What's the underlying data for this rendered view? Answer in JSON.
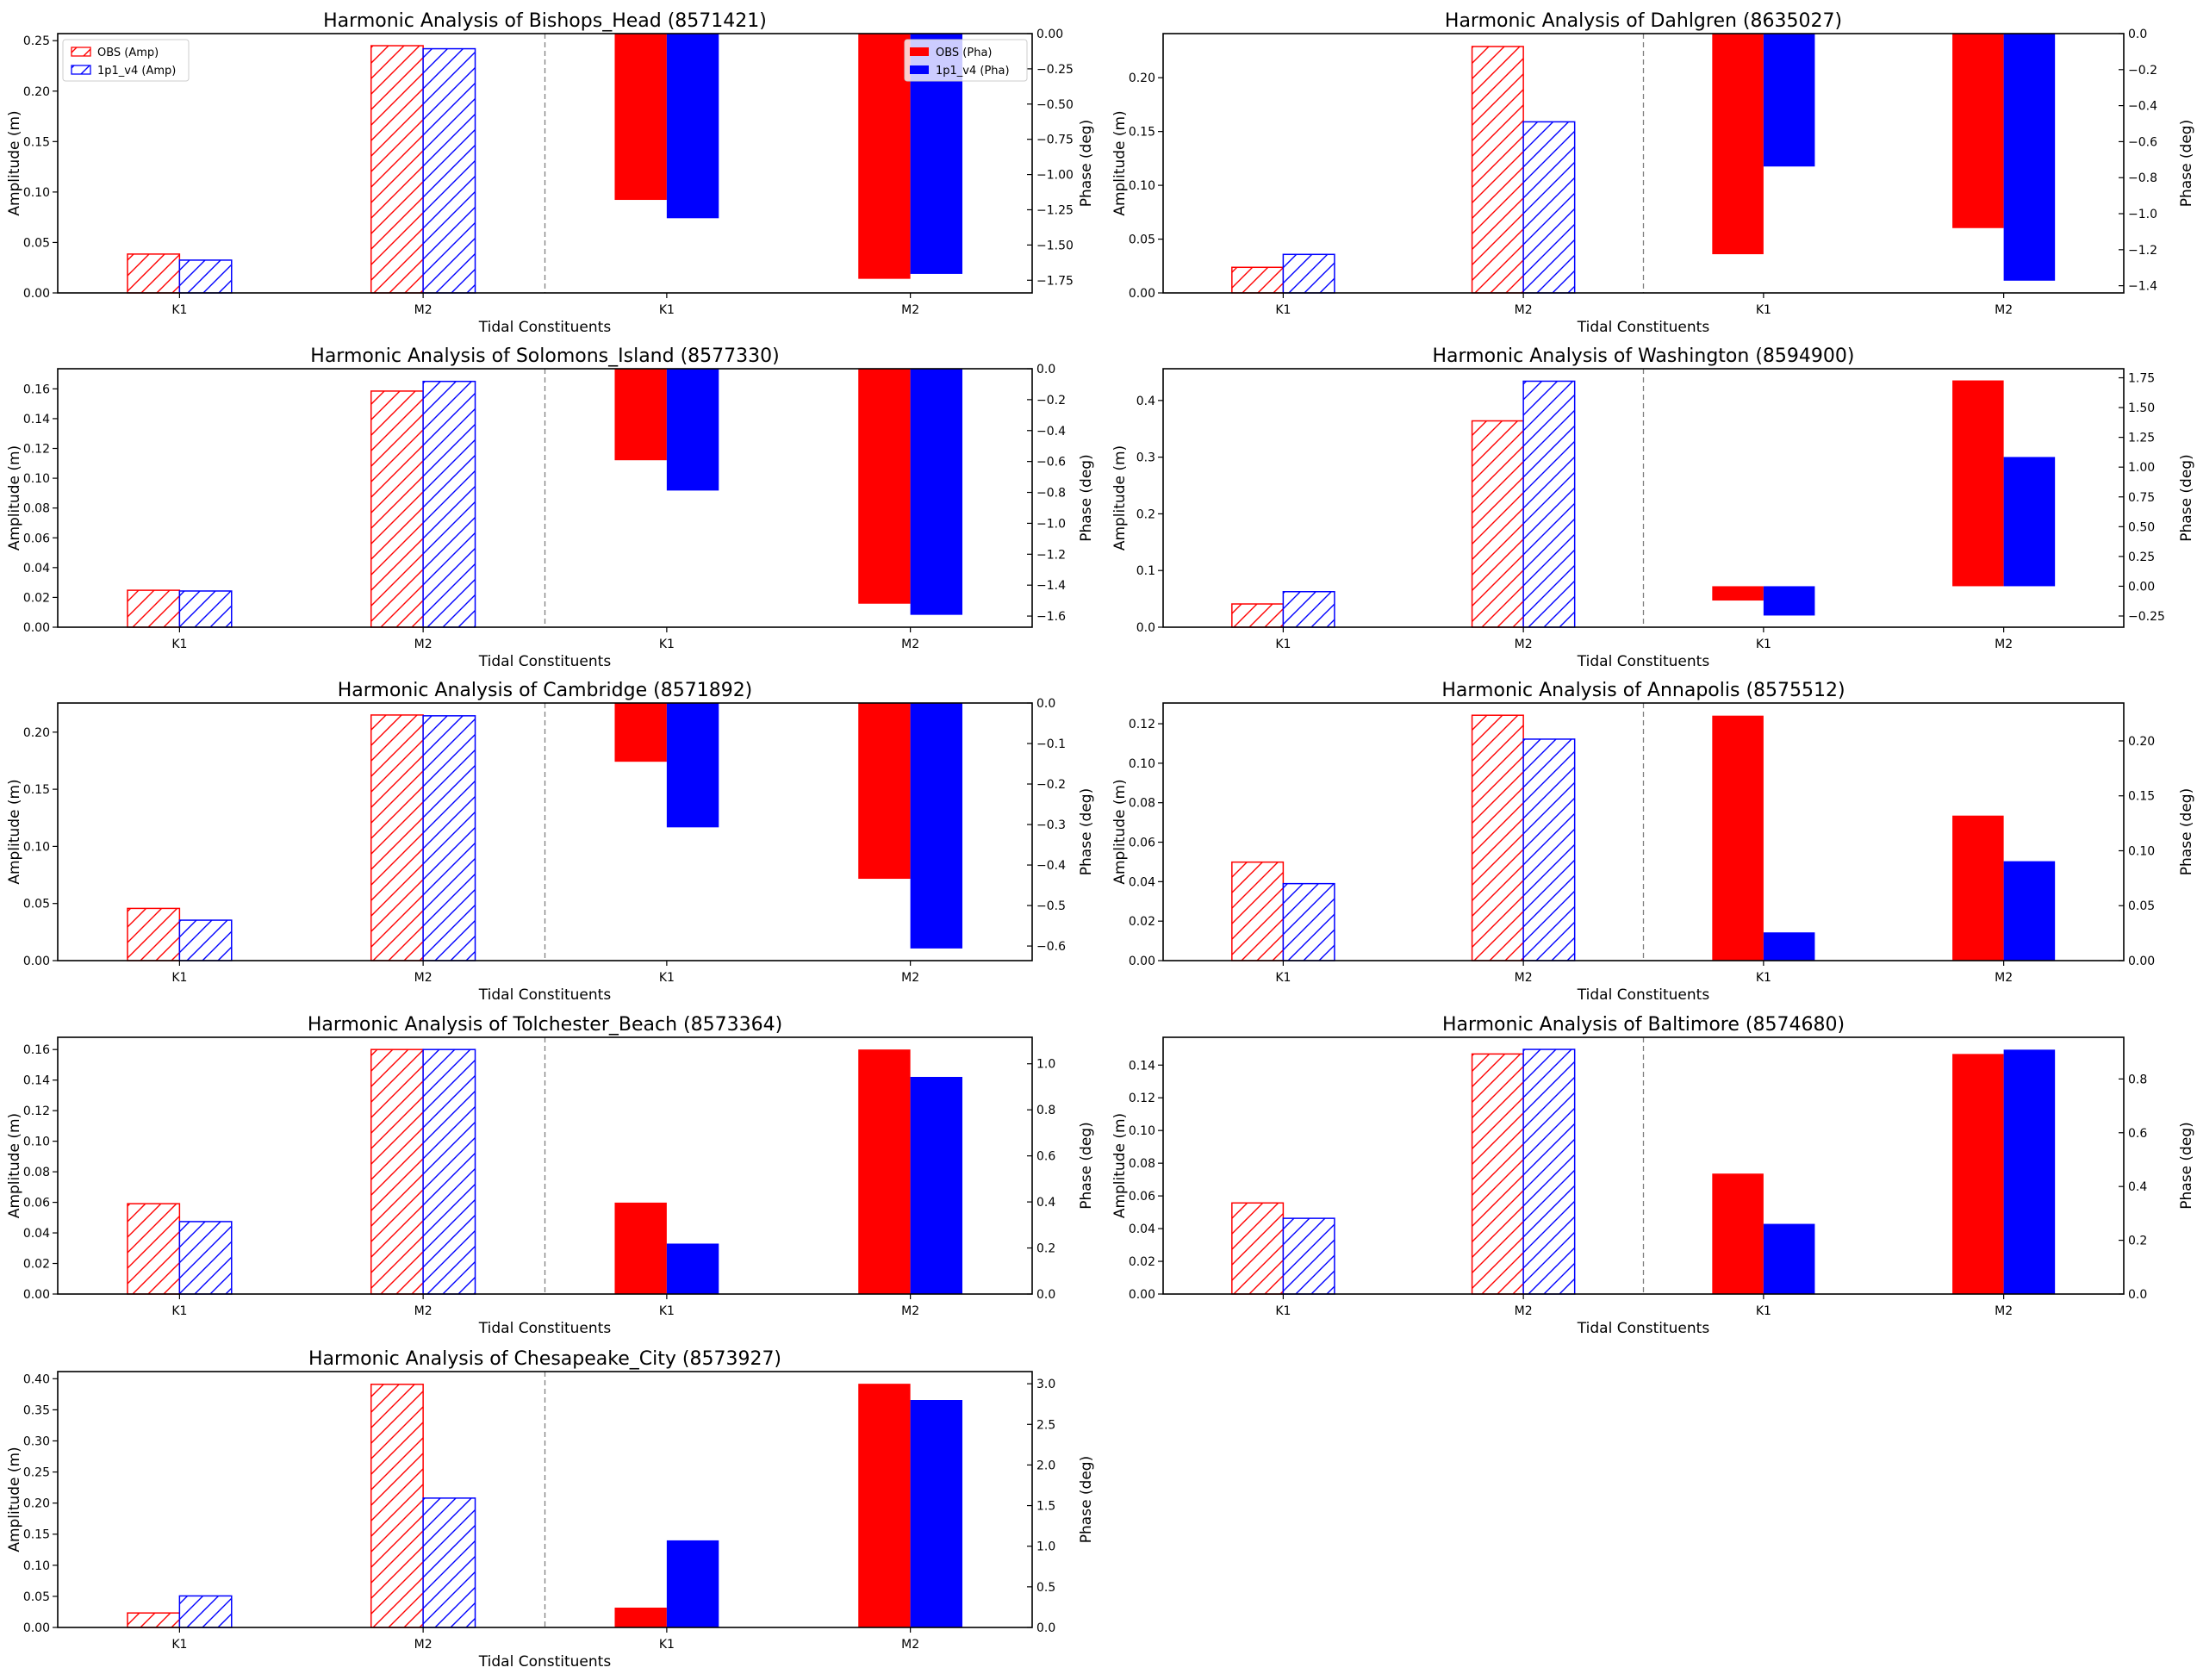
{
  "figure": {
    "xlabel": "Tidal Constituents",
    "ylabel_left": "Amplitude (m)",
    "ylabel_right": "Phase (deg)",
    "title_prefix": "Harmonic Analysis of "
  },
  "legend": {
    "amp": [
      {
        "label": "OBS (Amp)",
        "color": "#ff0000",
        "style": "hatched"
      },
      {
        "label": "1p1_v4 (Amp)",
        "color": "#0000ff",
        "style": "hatched"
      }
    ],
    "pha": [
      {
        "label": "OBS (Pha)",
        "color": "#ff0000",
        "style": "solid"
      },
      {
        "label": "1p1_v4 (Pha)",
        "color": "#0000ff",
        "style": "solid"
      }
    ]
  },
  "chart_data": [
    {
      "type": "bar",
      "title": "Harmonic Analysis of Bishops_Head (8571421)",
      "categories": [
        "K1",
        "M2",
        "K1",
        "M2"
      ],
      "xlabel": "Tidal Constituents",
      "ylabel": "Amplitude (m)",
      "y2label": "Phase (deg)",
      "amp_ylim": [
        0,
        0.257
      ],
      "amp_ticks": [
        "0.00",
        "0.05",
        "0.10",
        "0.15",
        "0.20",
        "0.25"
      ],
      "pha_ylim": [
        -1.84,
        0
      ],
      "pha_ticks": [
        "0.00",
        "-0.25",
        "-0.50",
        "-0.75",
        "-1.00",
        "-1.25",
        "-1.50",
        "-1.75"
      ],
      "legend": true,
      "series": [
        {
          "name": "OBS (Amp)",
          "axis": "amplitude",
          "values": {
            "K1": 0.0385,
            "M2": 0.245
          }
        },
        {
          "name": "1p1_v4 (Amp)",
          "axis": "amplitude",
          "values": {
            "K1": 0.0325,
            "M2": 0.242
          }
        },
        {
          "name": "OBS (Pha)",
          "axis": "phase",
          "values": {
            "K1": -1.18,
            "M2": -1.74
          }
        },
        {
          "name": "1p1_v4 (Pha)",
          "axis": "phase",
          "values": {
            "K1": -1.31,
            "M2": -1.705
          }
        }
      ]
    },
    {
      "type": "bar",
      "title": "Harmonic Analysis of Dahlgren (8635027)",
      "categories": [
        "K1",
        "M2",
        "K1",
        "M2"
      ],
      "xlabel": "Tidal Constituents",
      "ylabel": "Amplitude (m)",
      "y2label": "Phase (deg)",
      "amp_ylim": [
        0,
        0.241
      ],
      "amp_ticks": [
        "0.00",
        "0.05",
        "0.10",
        "0.15",
        "0.20"
      ],
      "pha_ylim": [
        -1.44,
        0
      ],
      "pha_ticks": [
        "0.0",
        "-0.2",
        "-0.4",
        "-0.6",
        "-0.8",
        "-1.0",
        "-1.2",
        "-1.4"
      ],
      "legend": false,
      "series": [
        {
          "name": "OBS (Amp)",
          "axis": "amplitude",
          "values": {
            "K1": 0.0238,
            "M2": 0.229
          }
        },
        {
          "name": "1p1_v4 (Amp)",
          "axis": "amplitude",
          "values": {
            "K1": 0.0358,
            "M2": 0.159
          }
        },
        {
          "name": "OBS (Pha)",
          "axis": "phase",
          "values": {
            "K1": -1.225,
            "M2": -1.08
          }
        },
        {
          "name": "1p1_v4 (Pha)",
          "axis": "phase",
          "values": {
            "K1": -0.738,
            "M2": -1.372
          }
        }
      ]
    },
    {
      "type": "bar",
      "title": "Harmonic Analysis of Solomons_Island (8577330)",
      "categories": [
        "K1",
        "M2",
        "K1",
        "M2"
      ],
      "xlabel": "Tidal Constituents",
      "ylabel": "Amplitude (m)",
      "y2label": "Phase (deg)",
      "amp_ylim": [
        0,
        0.1735
      ],
      "amp_ticks": [
        "0.00",
        "0.02",
        "0.04",
        "0.06",
        "0.08",
        "0.10",
        "0.12",
        "0.14",
        "0.16"
      ],
      "pha_ylim": [
        -1.672,
        0
      ],
      "pha_ticks": [
        "0.0",
        "-0.2",
        "-0.4",
        "-0.6",
        "-0.8",
        "-1.0",
        "-1.2",
        "-1.4",
        "-1.6"
      ],
      "legend": false,
      "series": [
        {
          "name": "OBS (Amp)",
          "axis": "amplitude",
          "values": {
            "K1": 0.0248,
            "M2": 0.1585
          }
        },
        {
          "name": "1p1_v4 (Amp)",
          "axis": "amplitude",
          "values": {
            "K1": 0.0243,
            "M2": 0.165
          }
        },
        {
          "name": "OBS (Pha)",
          "axis": "phase",
          "values": {
            "K1": -0.592,
            "M2": -1.52
          }
        },
        {
          "name": "1p1_v4 (Pha)",
          "axis": "phase",
          "values": {
            "K1": -0.788,
            "M2": -1.592
          }
        }
      ]
    },
    {
      "type": "bar",
      "title": "Harmonic Analysis of Washington (8594900)",
      "categories": [
        "K1",
        "M2",
        "K1",
        "M2"
      ],
      "xlabel": "Tidal Constituents",
      "ylabel": "Amplitude (m)",
      "y2label": "Phase (deg)",
      "amp_ylim": [
        0,
        0.456
      ],
      "amp_ticks": [
        "0.0",
        "0.1",
        "0.2",
        "0.3",
        "0.4"
      ],
      "pha_ylim": [
        -0.344,
        1.826
      ],
      "pha_ticks": [
        "-0.25",
        "0.00",
        "0.25",
        "0.50",
        "0.75",
        "1.00",
        "1.25",
        "1.50",
        "1.75"
      ],
      "legend": false,
      "series": [
        {
          "name": "OBS (Amp)",
          "axis": "amplitude",
          "values": {
            "K1": 0.041,
            "M2": 0.364
          }
        },
        {
          "name": "1p1_v4 (Amp)",
          "axis": "amplitude",
          "values": {
            "K1": 0.0627,
            "M2": 0.434
          }
        },
        {
          "name": "OBS (Pha)",
          "axis": "phase",
          "values": {
            "K1": -0.12,
            "M2": 1.728
          }
        },
        {
          "name": "1p1_v4 (Pha)",
          "axis": "phase",
          "values": {
            "K1": -0.246,
            "M2": 1.085
          }
        }
      ]
    },
    {
      "type": "bar",
      "title": "Harmonic Analysis of Cambridge (8571892)",
      "categories": [
        "K1",
        "M2",
        "K1",
        "M2"
      ],
      "xlabel": "Tidal Constituents",
      "ylabel": "Amplitude (m)",
      "y2label": "Phase (deg)",
      "amp_ylim": [
        0,
        0.2255
      ],
      "amp_ticks": [
        "0.00",
        "0.05",
        "0.10",
        "0.15",
        "0.20"
      ],
      "pha_ylim": [
        -0.636,
        0
      ],
      "pha_ticks": [
        "0.0",
        "-0.1",
        "-0.2",
        "-0.3",
        "-0.4",
        "-0.5",
        "-0.6"
      ],
      "legend": false,
      "series": [
        {
          "name": "OBS (Amp)",
          "axis": "amplitude",
          "values": {
            "K1": 0.0457,
            "M2": 0.215
          }
        },
        {
          "name": "1p1_v4 (Amp)",
          "axis": "amplitude",
          "values": {
            "K1": 0.0354,
            "M2": 0.2143
          }
        },
        {
          "name": "OBS (Pha)",
          "axis": "phase",
          "values": {
            "K1": -0.145,
            "M2": -0.434
          }
        },
        {
          "name": "1p1_v4 (Pha)",
          "axis": "phase",
          "values": {
            "K1": -0.307,
            "M2": -0.606
          }
        }
      ]
    },
    {
      "type": "bar",
      "title": "Harmonic Analysis of Annapolis (8575512)",
      "categories": [
        "K1",
        "M2",
        "K1",
        "M2"
      ],
      "xlabel": "Tidal Constituents",
      "ylabel": "Amplitude (m)",
      "y2label": "Phase (deg)",
      "amp_ylim": [
        0,
        0.1305
      ],
      "amp_ticks": [
        "0.00",
        "0.02",
        "0.04",
        "0.06",
        "0.08",
        "0.10",
        "0.12"
      ],
      "pha_ylim": [
        0,
        0.2345
      ],
      "pha_ticks": [
        "0.00",
        "0.05",
        "0.10",
        "0.15",
        "0.20"
      ],
      "legend": false,
      "series": [
        {
          "name": "OBS (Amp)",
          "axis": "amplitude",
          "values": {
            "K1": 0.0499,
            "M2": 0.1243
          }
        },
        {
          "name": "1p1_v4 (Amp)",
          "axis": "amplitude",
          "values": {
            "K1": 0.039,
            "M2": 0.1122
          }
        },
        {
          "name": "OBS (Pha)",
          "axis": "phase",
          "values": {
            "K1": 0.223,
            "M2": 0.132
          }
        },
        {
          "name": "1p1_v4 (Pha)",
          "axis": "phase",
          "values": {
            "K1": 0.0257,
            "M2": 0.0905
          }
        }
      ]
    },
    {
      "type": "bar",
      "title": "Harmonic Analysis of Tolchester_Beach (8573364)",
      "categories": [
        "K1",
        "M2",
        "K1",
        "M2"
      ],
      "xlabel": "Tidal Constituents",
      "ylabel": "Amplitude (m)",
      "y2label": "Phase (deg)",
      "amp_ylim": [
        0,
        0.168
      ],
      "amp_ticks": [
        "0.00",
        "0.02",
        "0.04",
        "0.06",
        "0.08",
        "0.10",
        "0.12",
        "0.14",
        "0.16"
      ],
      "pha_ylim": [
        0,
        1.115
      ],
      "pha_ticks": [
        "0.0",
        "0.2",
        "0.4",
        "0.6",
        "0.8",
        "1.0"
      ],
      "legend": false,
      "series": [
        {
          "name": "OBS (Amp)",
          "axis": "amplitude",
          "values": {
            "K1": 0.0591,
            "M2": 0.16
          }
        },
        {
          "name": "1p1_v4 (Amp)",
          "axis": "amplitude",
          "values": {
            "K1": 0.0474,
            "M2": 0.16
          }
        },
        {
          "name": "OBS (Pha)",
          "axis": "phase",
          "values": {
            "K1": 0.397,
            "M2": 1.062
          }
        },
        {
          "name": "1p1_v4 (Pha)",
          "axis": "phase",
          "values": {
            "K1": 0.219,
            "M2": 0.943
          }
        }
      ]
    },
    {
      "type": "bar",
      "title": "Harmonic Analysis of Baltimore (8574680)",
      "categories": [
        "K1",
        "M2",
        "K1",
        "M2"
      ],
      "xlabel": "Tidal Constituents",
      "ylabel": "Amplitude (m)",
      "y2label": "Phase (deg)",
      "amp_ylim": [
        0,
        0.157
      ],
      "amp_ticks": [
        "0.00",
        "0.02",
        "0.04",
        "0.06",
        "0.08",
        "0.10",
        "0.12",
        "0.14"
      ],
      "pha_ylim": [
        0,
        0.955
      ],
      "pha_ticks": [
        "0.0",
        "0.2",
        "0.4",
        "0.6",
        "0.8"
      ],
      "legend": false,
      "series": [
        {
          "name": "OBS (Amp)",
          "axis": "amplitude",
          "values": {
            "K1": 0.0557,
            "M2": 0.1468
          }
        },
        {
          "name": "1p1_v4 (Amp)",
          "axis": "amplitude",
          "values": {
            "K1": 0.0463,
            "M2": 0.1496
          }
        },
        {
          "name": "OBS (Pha)",
          "axis": "phase",
          "values": {
            "K1": 0.448,
            "M2": 0.893
          }
        },
        {
          "name": "1p1_v4 (Pha)",
          "axis": "phase",
          "values": {
            "K1": 0.261,
            "M2": 0.909
          }
        }
      ]
    },
    {
      "type": "bar",
      "title": "Harmonic Analysis of Chesapeake_City (8573927)",
      "categories": [
        "K1",
        "M2",
        "K1",
        "M2"
      ],
      "xlabel": "Tidal Constituents",
      "ylabel": "Amplitude (m)",
      "y2label": "Phase (deg)",
      "amp_ylim": [
        0,
        0.4115
      ],
      "amp_ticks": [
        "0.00",
        "0.05",
        "0.10",
        "0.15",
        "0.20",
        "0.25",
        "0.30",
        "0.35",
        "0.40"
      ],
      "pha_ylim": [
        0,
        3.15
      ],
      "pha_ticks": [
        "0.0",
        "0.5",
        "1.0",
        "1.5",
        "2.0",
        "2.5",
        "3.0"
      ],
      "legend": false,
      "series": [
        {
          "name": "OBS (Amp)",
          "axis": "amplitude",
          "values": {
            "K1": 0.0233,
            "M2": 0.391
          }
        },
        {
          "name": "1p1_v4 (Amp)",
          "axis": "amplitude",
          "values": {
            "K1": 0.0507,
            "M2": 0.208
          }
        },
        {
          "name": "OBS (Pha)",
          "axis": "phase",
          "values": {
            "K1": 0.244,
            "M2": 3.0
          }
        },
        {
          "name": "1p1_v4 (Pha)",
          "axis": "phase",
          "values": {
            "K1": 1.072,
            "M2": 2.8
          }
        }
      ]
    }
  ]
}
